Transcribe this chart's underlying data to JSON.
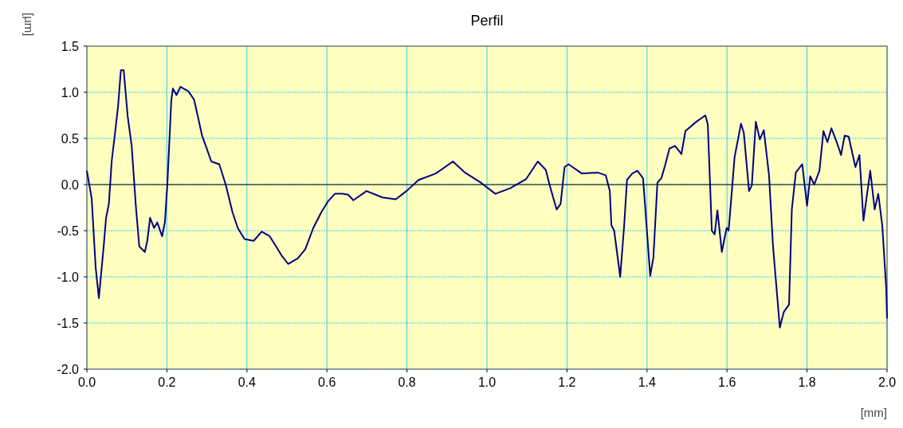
{
  "chart_data": {
    "type": "line",
    "title": "Perfil",
    "xlabel": "[mm]",
    "ylabel": "[µm]",
    "xlim": [
      0,
      2
    ],
    "ylim": [
      -2,
      1.5
    ],
    "xticks": [
      {
        "value": 0,
        "label": "0.0"
      },
      0.2,
      0.4,
      0.6,
      0.8,
      {
        "value": 1,
        "label": "1.0"
      },
      1.2,
      1.4,
      1.6,
      1.8,
      {
        "value": 2,
        "label": "2.0"
      }
    ],
    "yticks": [
      {
        "value": -2,
        "label": "-2.0"
      },
      -1.5,
      {
        "value": -1,
        "label": "-1.0"
      },
      -0.5,
      {
        "value": 0,
        "label": "0.0"
      },
      0.5,
      {
        "value": 1,
        "label": "1.0"
      },
      1.5
    ],
    "grid": true,
    "ref_lines": [
      {
        "axis": "y",
        "value": 0,
        "color": "#000000"
      }
    ],
    "series": [
      {
        "color": "#000080",
        "x": [
          0,
          0.012,
          0.022,
          0.03,
          0.042,
          0.048,
          0.055,
          0.062,
          0.072,
          0.078,
          0.085,
          0.092,
          0.102,
          0.112,
          0.122,
          0.131,
          0.145,
          0.151,
          0.158,
          0.168,
          0.176,
          0.188,
          0.195,
          0.201,
          0.211,
          0.215,
          0.224,
          0.234,
          0.254,
          0.268,
          0.288,
          0.298,
          0.311,
          0.331,
          0.347,
          0.364,
          0.377,
          0.394,
          0.417,
          0.437,
          0.457,
          0.487,
          0.503,
          0.527,
          0.546,
          0.566,
          0.586,
          0.603,
          0.62,
          0.639,
          0.653,
          0.666,
          0.699,
          0.739,
          0.772,
          0.799,
          0.829,
          0.872,
          0.915,
          0.945,
          0.985,
          1.021,
          1.058,
          1.098,
          1.127,
          1.147,
          1.157,
          1.174,
          1.184,
          1.194,
          1.204,
          1.237,
          1.277,
          1.297,
          1.307,
          1.311,
          1.318,
          1.333,
          1.343,
          1.35,
          1.363,
          1.376,
          1.39,
          1.396,
          1.408,
          1.416,
          1.426,
          1.436,
          1.446,
          1.456,
          1.47,
          1.486,
          1.496,
          1.523,
          1.546,
          1.552,
          1.562,
          1.569,
          1.576,
          1.587,
          1.599,
          1.604,
          1.619,
          1.635,
          1.642,
          1.655,
          1.662,
          1.672,
          1.682,
          1.692,
          1.705,
          1.715,
          1.732,
          1.742,
          1.755,
          1.762,
          1.772,
          1.788,
          1.8,
          1.808,
          1.818,
          1.831,
          1.841,
          1.851,
          1.861,
          1.875,
          1.885,
          1.894,
          1.904,
          1.921,
          1.931,
          1.941,
          1.958,
          1.969,
          1.978,
          1.988,
          1.998,
          2.0
        ],
        "values": [
          0.15,
          -0.15,
          -0.9,
          -1.23,
          -0.67,
          -0.36,
          -0.21,
          0.25,
          0.62,
          0.85,
          1.24,
          1.24,
          0.74,
          0.42,
          -0.21,
          -0.67,
          -0.73,
          -0.61,
          -0.36,
          -0.47,
          -0.41,
          -0.56,
          -0.41,
          -0.01,
          0.91,
          1.04,
          0.97,
          1.06,
          1.01,
          0.92,
          0.53,
          0.41,
          0.25,
          0.22,
          0.0,
          -0.3,
          -0.47,
          -0.59,
          -0.61,
          -0.51,
          -0.56,
          -0.77,
          -0.86,
          -0.8,
          -0.7,
          -0.47,
          -0.3,
          -0.18,
          -0.1,
          -0.1,
          -0.11,
          -0.17,
          -0.07,
          -0.14,
          -0.16,
          -0.07,
          0.05,
          0.12,
          0.25,
          0.13,
          0.02,
          -0.1,
          -0.04,
          0.06,
          0.25,
          0.16,
          -0.01,
          -0.27,
          -0.21,
          0.19,
          0.22,
          0.12,
          0.13,
          0.1,
          -0.07,
          -0.44,
          -0.5,
          -1.0,
          -0.44,
          0.05,
          0.12,
          0.15,
          0.07,
          -0.27,
          -0.99,
          -0.79,
          0.02,
          0.07,
          0.22,
          0.39,
          0.42,
          0.33,
          0.58,
          0.68,
          0.75,
          0.65,
          -0.5,
          -0.54,
          -0.28,
          -0.73,
          -0.47,
          -0.5,
          0.3,
          0.66,
          0.56,
          -0.07,
          -0.01,
          0.68,
          0.49,
          0.59,
          0.1,
          -0.67,
          -1.55,
          -1.38,
          -1.3,
          -0.27,
          0.13,
          0.22,
          -0.23,
          0.09,
          0.0,
          0.15,
          0.58,
          0.46,
          0.61,
          0.45,
          0.32,
          0.53,
          0.52,
          0.19,
          0.32,
          -0.39,
          0.15,
          -0.27,
          -0.1,
          -0.44,
          -1.13,
          -1.45
        ]
      }
    ]
  }
}
